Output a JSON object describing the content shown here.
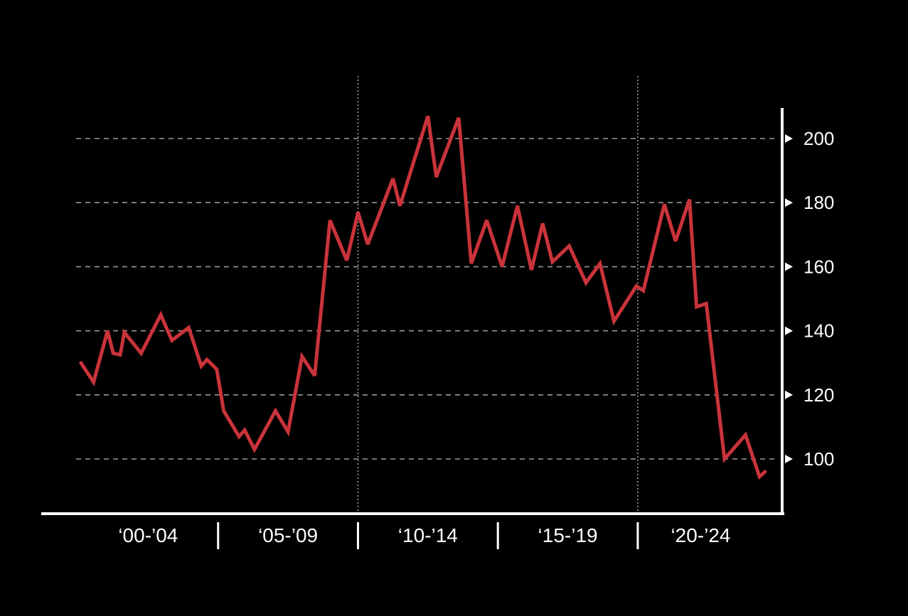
{
  "colors": {
    "background": "#000000",
    "line": "#c9333a",
    "axis": "#ffffff",
    "grid": "#9a9a9a",
    "text": "#ffffff"
  },
  "chart_data": {
    "type": "line",
    "title": "",
    "xlabel": "",
    "ylabel": "",
    "grid": true,
    "y_axis_position": "right",
    "xlim": [
      2000,
      2024.5
    ],
    "ylim": [
      83,
      210
    ],
    "y_ticks": [
      100,
      120,
      140,
      160,
      180,
      200
    ],
    "y_tick_labels": [
      "100",
      "120",
      "140",
      "160",
      "180",
      "200"
    ],
    "period_labels": [
      {
        "label": "‘00-’04",
        "start": 2000,
        "end": 2005
      },
      {
        "label": "‘05-’09",
        "start": 2005,
        "end": 2010
      },
      {
        "label": "‘10-’14",
        "start": 2010,
        "end": 2015
      },
      {
        "label": "‘15-’19",
        "start": 2015,
        "end": 2020
      },
      {
        "label": "‘20-’24",
        "start": 2020,
        "end": 2024.5
      }
    ],
    "period_separators": [
      2005,
      2010,
      2015,
      2020
    ],
    "vertical_gridlines": [
      2010,
      2020
    ],
    "series": [
      {
        "values": [
          [
            2000.1,
            130
          ],
          [
            2000.55,
            124
          ],
          [
            2001.05,
            140
          ],
          [
            2001.25,
            133
          ],
          [
            2001.5,
            132.5
          ],
          [
            2001.65,
            139.5
          ],
          [
            2002.25,
            133
          ],
          [
            2002.95,
            145
          ],
          [
            2003.35,
            137
          ],
          [
            2003.95,
            141
          ],
          [
            2004.4,
            129
          ],
          [
            2004.6,
            131
          ],
          [
            2004.95,
            128
          ],
          [
            2005.2,
            115
          ],
          [
            2005.75,
            107
          ],
          [
            2005.95,
            109
          ],
          [
            2006.3,
            103
          ],
          [
            2007.05,
            115
          ],
          [
            2007.5,
            108.5
          ],
          [
            2008.0,
            132
          ],
          [
            2008.45,
            126
          ],
          [
            2009.0,
            174.5
          ],
          [
            2009.6,
            162
          ],
          [
            2010.0,
            177
          ],
          [
            2010.35,
            167
          ],
          [
            2011.25,
            187.5
          ],
          [
            2011.5,
            179
          ],
          [
            2012.5,
            207
          ],
          [
            2012.8,
            188
          ],
          [
            2013.6,
            206.5
          ],
          [
            2014.05,
            161
          ],
          [
            2014.6,
            174.5
          ],
          [
            2015.15,
            160
          ],
          [
            2015.7,
            179
          ],
          [
            2016.2,
            159
          ],
          [
            2016.6,
            173.5
          ],
          [
            2016.95,
            161.5
          ],
          [
            2017.55,
            166.5
          ],
          [
            2018.15,
            155
          ],
          [
            2018.65,
            161
          ],
          [
            2019.15,
            143
          ],
          [
            2019.95,
            154
          ],
          [
            2020.2,
            152.5
          ],
          [
            2020.95,
            179.5
          ],
          [
            2021.35,
            168
          ],
          [
            2021.85,
            181
          ],
          [
            2022.1,
            147.5
          ],
          [
            2022.45,
            148.5
          ],
          [
            2023.1,
            100
          ],
          [
            2023.85,
            107.5
          ],
          [
            2024.35,
            94.5
          ],
          [
            2024.55,
            96
          ]
        ]
      }
    ]
  }
}
